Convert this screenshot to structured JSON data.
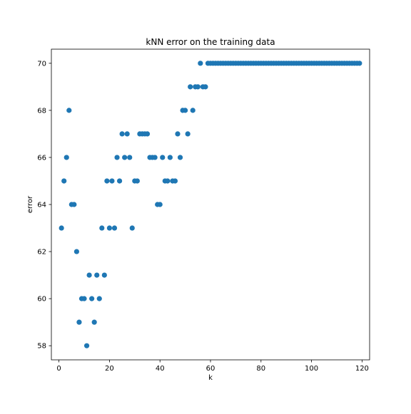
{
  "chart_data": {
    "type": "scatter",
    "title": "kNN error on the training data",
    "xlabel": "k",
    "ylabel": "error",
    "xlim": [
      -3,
      123
    ],
    "ylim": [
      57.4,
      70.6
    ],
    "xticks": [
      0,
      20,
      40,
      60,
      80,
      100,
      120
    ],
    "yticks": [
      58,
      60,
      62,
      64,
      66,
      68,
      70
    ],
    "grid": false,
    "marker_color": "#1f77b4",
    "series": [
      {
        "x": [
          1,
          2,
          3,
          4,
          5,
          6,
          7,
          8,
          9,
          10,
          11,
          12,
          13,
          14,
          15,
          16,
          17,
          18,
          19,
          20,
          21,
          22,
          23,
          24,
          25,
          26,
          27,
          28,
          29,
          30,
          31,
          32,
          33,
          34,
          35,
          36,
          37,
          38,
          39,
          40,
          41,
          42,
          43,
          44,
          45,
          46,
          47,
          48,
          49,
          50,
          51,
          52,
          53,
          54,
          55,
          56,
          57,
          58,
          59,
          60,
          61,
          62,
          63,
          64,
          65,
          66,
          67,
          68,
          69,
          70,
          71,
          72,
          73,
          74,
          75,
          76,
          77,
          78,
          79,
          80,
          81,
          82,
          83,
          84,
          85,
          86,
          87,
          88,
          89,
          90,
          91,
          92,
          93,
          94,
          95,
          96,
          97,
          98,
          99,
          100,
          101,
          102,
          103,
          104,
          105,
          106,
          107,
          108,
          109,
          110,
          111,
          112,
          113,
          114,
          115,
          116,
          117,
          118,
          119
        ],
        "y": [
          63,
          65,
          66,
          68,
          64,
          64,
          62,
          59,
          60,
          60,
          58,
          61,
          60,
          59,
          61,
          60,
          63,
          61,
          65,
          63,
          65,
          63,
          66,
          65,
          67,
          66,
          67,
          66,
          63,
          65,
          65,
          67,
          67,
          67,
          67,
          66,
          66,
          66,
          64,
          64,
          66,
          65,
          65,
          66,
          65,
          65,
          67,
          66,
          68,
          68,
          67,
          69,
          68,
          69,
          69,
          70,
          69,
          69,
          70,
          70,
          70,
          70,
          70,
          70,
          70,
          70,
          70,
          70,
          70,
          70,
          70,
          70,
          70,
          70,
          70,
          70,
          70,
          70,
          70,
          70,
          70,
          70,
          70,
          70,
          70,
          70,
          70,
          70,
          70,
          70,
          70,
          70,
          70,
          70,
          70,
          70,
          70,
          70,
          70,
          70,
          70,
          70,
          70,
          70,
          70,
          70,
          70,
          70,
          70,
          70,
          70,
          70,
          70,
          70,
          70,
          70,
          70,
          70,
          70
        ]
      }
    ]
  }
}
